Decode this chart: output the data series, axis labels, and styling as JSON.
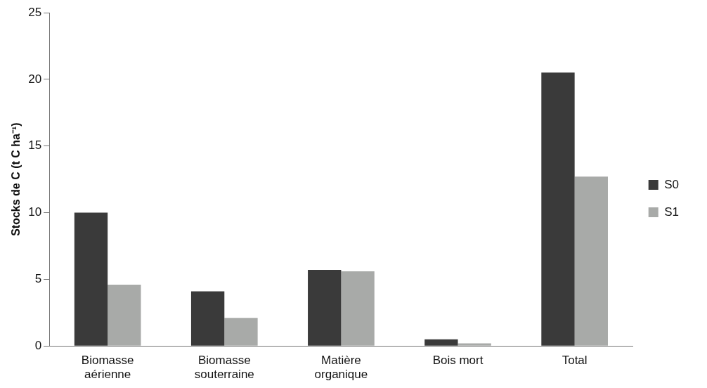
{
  "chart_data": {
    "type": "bar",
    "ylabel": "Stocks de C (t C ha⁻¹)",
    "categories": [
      "Biomasse aérienne",
      "Biomasse souterraine",
      "Matière organique",
      "Bois mort",
      "Total"
    ],
    "series": [
      {
        "name": "S0",
        "color": "#3a3a3a",
        "values": [
          10.0,
          4.1,
          5.7,
          0.5,
          20.5
        ]
      },
      {
        "name": "S1",
        "color": "#a8aaa8",
        "values": [
          4.6,
          2.1,
          5.6,
          0.2,
          12.7
        ]
      }
    ],
    "ylim": [
      0,
      25
    ],
    "yticks": [
      0,
      5,
      10,
      15,
      20,
      25
    ],
    "grid": false,
    "legend": "right"
  }
}
